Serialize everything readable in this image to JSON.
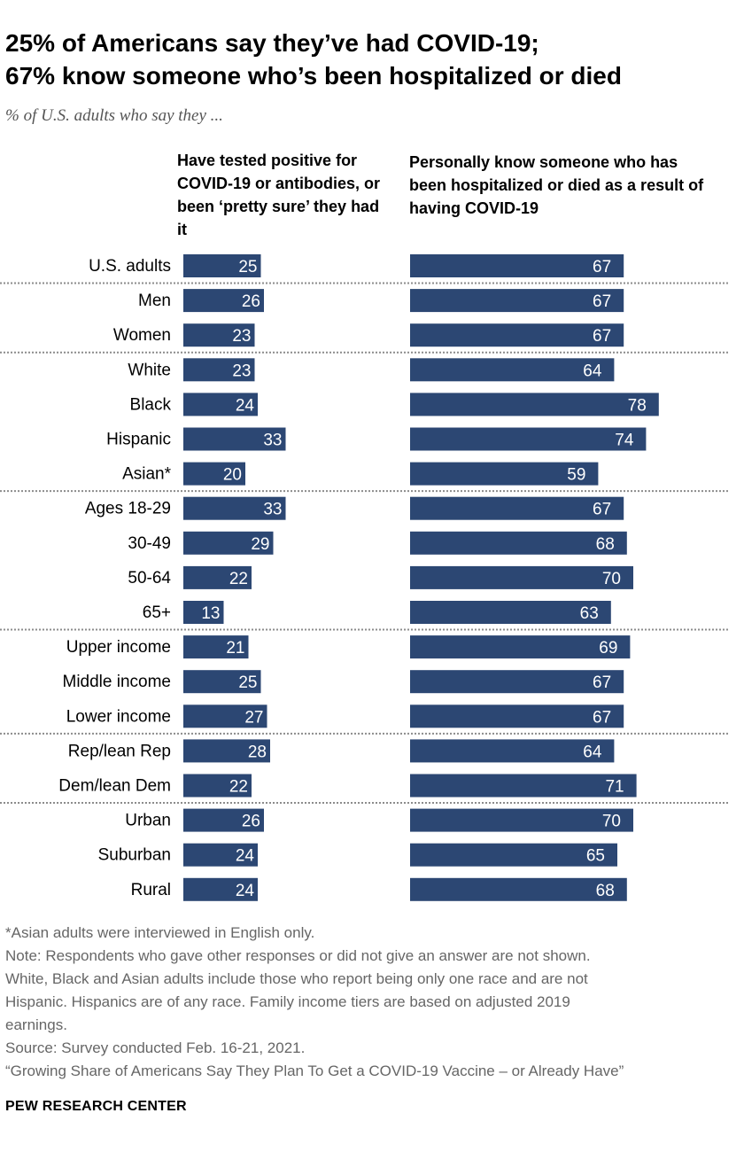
{
  "title_line1": "25% of Americans say they’ve had COVID-19;",
  "title_line2": "67% know someone who’s been hospitalized or died",
  "subtitle": "% of U.S. adults who say they ...",
  "colors": {
    "bar": "#2c4773",
    "bar_text": "#ffffff",
    "divider": "#8c8c8c"
  },
  "chart_data": {
    "type": "bar",
    "orientation": "horizontal",
    "categories": [
      "U.S. adults",
      "Men",
      "Women",
      "White",
      "Black",
      "Hispanic",
      "Asian*",
      "Ages 18-29",
      "30-49",
      "50-64",
      "65+",
      "Upper income",
      "Middle income",
      "Lower income",
      "Rep/lean Rep",
      "Dem/lean Dem",
      "Urban",
      "Suburban",
      "Rural"
    ],
    "groups_end_after": [
      "U.S. adults",
      "Women",
      "Asian*",
      "65+",
      "Lower income",
      "Dem/lean Dem"
    ],
    "series": [
      {
        "name": "Have tested positive for COVID-19 or antibodies, or been ‘pretty sure’ they had it",
        "values": [
          25,
          26,
          23,
          23,
          24,
          33,
          20,
          33,
          29,
          22,
          13,
          21,
          25,
          27,
          28,
          22,
          26,
          24,
          24
        ]
      },
      {
        "name": "Personally know someone who has been hospitalized or died as a result of having COVID-19",
        "values": [
          67,
          67,
          67,
          64,
          78,
          74,
          59,
          67,
          68,
          70,
          63,
          69,
          67,
          67,
          64,
          71,
          70,
          65,
          68
        ]
      }
    ],
    "xlim": [
      0,
      100
    ]
  },
  "footer": {
    "asian_note": "*Asian adults were interviewed in English only.",
    "note_line1": "Note: Respondents who gave other responses or did not give an answer are not shown.",
    "note_line2": "White, Black and Asian adults include those who report being only one race and are not",
    "note_line3": "Hispanic. Hispanics are of any race. Family income tiers are based on adjusted 2019",
    "note_line4": "earnings.",
    "source": "Source: Survey conducted Feb. 16-21, 2021.",
    "report": "“Growing Share of Americans Say They Plan To Get a COVID-19 Vaccine – or Already Have”"
  },
  "brand": "PEW RESEARCH CENTER"
}
